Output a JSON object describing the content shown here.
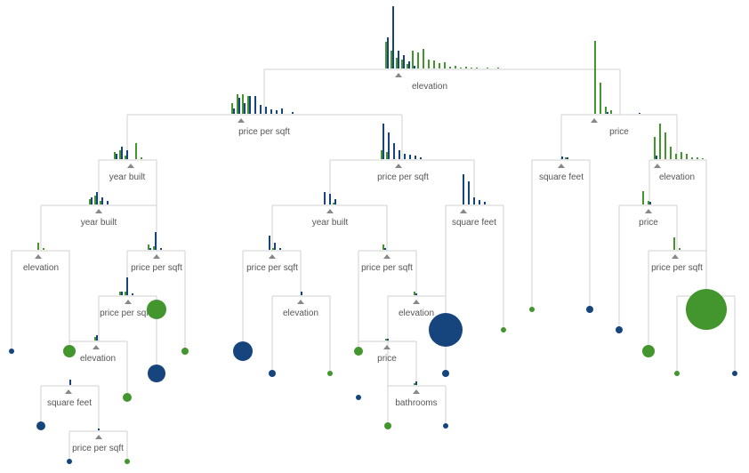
{
  "colors": {
    "class_a": "#43962e",
    "class_b": "#16457e",
    "edge": "#d0d0d0",
    "text": "#555555"
  },
  "nodes": [
    {
      "label": "elevation"
    },
    {
      "label": "price per sqft"
    },
    {
      "label": "price"
    },
    {
      "label": "year built"
    },
    {
      "label": "price per sqft"
    },
    {
      "label": "square feet"
    },
    {
      "label": "elevation"
    },
    {
      "label": "year built"
    },
    {
      "label": "year built"
    },
    {
      "label": "square feet"
    },
    {
      "label": "price"
    },
    {
      "label": "elevation"
    },
    {
      "label": "price per sqft"
    },
    {
      "label": "price per sqft"
    },
    {
      "label": "price per sqft"
    },
    {
      "label": "price per sqft"
    },
    {
      "label": "price per sqft"
    },
    {
      "label": "elevation"
    },
    {
      "label": "elevation"
    },
    {
      "label": "elevation"
    },
    {
      "label": "price"
    },
    {
      "label": "square feet"
    },
    {
      "label": "bathrooms"
    },
    {
      "label": "price per sqft"
    },
    {
      "label": ""
    }
  ],
  "leaves": [
    {
      "class": "b"
    },
    {
      "class": "a"
    },
    {
      "class": "b"
    },
    {
      "class": "b"
    },
    {
      "class": "a"
    },
    {
      "class": "a"
    },
    {
      "class": "a"
    },
    {
      "class": "b"
    },
    {
      "class": "a"
    },
    {
      "class": "b"
    },
    {
      "class": "b"
    },
    {
      "class": "a"
    },
    {
      "class": "b"
    },
    {
      "class": "a"
    },
    {
      "class": "a"
    },
    {
      "class": "b"
    },
    {
      "class": "b"
    },
    {
      "class": "b"
    },
    {
      "class": "a"
    },
    {
      "class": "a"
    },
    {
      "class": "b"
    },
    {
      "class": "b"
    },
    {
      "class": "a"
    },
    {
      "class": "a"
    },
    {
      "class": "a"
    },
    {
      "class": "b"
    }
  ]
}
